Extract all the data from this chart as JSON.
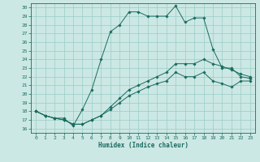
{
  "xlabel": "Humidex (Indice chaleur)",
  "background_color": "#cce8e4",
  "grid_color": "#99ccc6",
  "line_color": "#1a6b5e",
  "xlim": [
    -0.5,
    23.5
  ],
  "ylim": [
    15.5,
    30.5
  ],
  "yticks": [
    16,
    17,
    18,
    19,
    20,
    21,
    22,
    23,
    24,
    25,
    26,
    27,
    28,
    29,
    30
  ],
  "xticks": [
    0,
    1,
    2,
    3,
    4,
    5,
    6,
    7,
    8,
    9,
    10,
    11,
    12,
    13,
    14,
    15,
    16,
    17,
    18,
    19,
    20,
    21,
    22,
    23
  ],
  "series": [
    {
      "x": [
        0,
        1,
        2,
        3,
        4,
        5,
        6,
        7,
        8,
        9,
        10,
        11,
        12,
        13,
        14,
        15,
        16,
        17,
        18,
        19,
        20,
        21,
        22,
        23
      ],
      "y": [
        18.0,
        17.5,
        17.2,
        17.2,
        16.3,
        18.2,
        20.5,
        24.0,
        27.2,
        28.0,
        29.5,
        29.5,
        29.0,
        29.0,
        29.0,
        30.2,
        28.3,
        28.8,
        28.8,
        25.2,
        23.0,
        23.0,
        22.0,
        21.8
      ]
    },
    {
      "x": [
        0,
        1,
        2,
        3,
        4,
        5,
        6,
        7,
        8,
        9,
        10,
        11,
        12,
        13,
        14,
        15,
        16,
        17,
        18,
        19,
        20,
        21,
        22,
        23
      ],
      "y": [
        18.0,
        17.5,
        17.2,
        17.0,
        16.5,
        16.5,
        17.0,
        17.5,
        18.5,
        19.5,
        20.5,
        21.0,
        21.5,
        22.0,
        22.5,
        23.5,
        23.5,
        23.5,
        24.0,
        23.5,
        23.2,
        22.8,
        22.3,
        22.0
      ]
    },
    {
      "x": [
        0,
        1,
        2,
        3,
        4,
        5,
        6,
        7,
        8,
        9,
        10,
        11,
        12,
        13,
        14,
        15,
        16,
        17,
        18,
        19,
        20,
        21,
        22,
        23
      ],
      "y": [
        18.0,
        17.5,
        17.2,
        17.0,
        16.5,
        16.5,
        17.0,
        17.5,
        18.2,
        19.0,
        19.8,
        20.3,
        20.8,
        21.2,
        21.5,
        22.5,
        22.0,
        22.0,
        22.5,
        21.5,
        21.2,
        20.8,
        21.5,
        21.5
      ]
    }
  ]
}
